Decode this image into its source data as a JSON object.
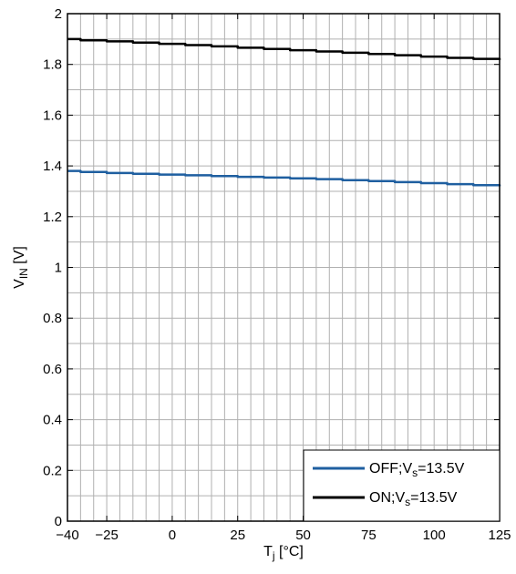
{
  "chart_data": {
    "type": "line",
    "xlabel": {
      "main": "T",
      "sub": "j",
      "unit": " [°C]"
    },
    "ylabel": {
      "main": "V",
      "sub": "IN",
      "unit": " [V]"
    },
    "xlim": [
      -40,
      125
    ],
    "ylim": [
      0,
      2
    ],
    "x_ticks": [
      {
        "value": -40,
        "label": "−40"
      },
      {
        "value": -25,
        "label": "−25"
      },
      {
        "value": 0,
        "label": "0"
      },
      {
        "value": 25,
        "label": "25"
      },
      {
        "value": 50,
        "label": "50"
      },
      {
        "value": 75,
        "label": "75"
      },
      {
        "value": 100,
        "label": "100"
      },
      {
        "value": 125,
        "label": "125"
      }
    ],
    "y_ticks": [
      {
        "value": 0,
        "label": "0"
      },
      {
        "value": 0.2,
        "label": "0.2"
      },
      {
        "value": 0.4,
        "label": "0.4"
      },
      {
        "value": 0.6,
        "label": "0.6"
      },
      {
        "value": 0.8,
        "label": "0.8"
      },
      {
        "value": 1.0,
        "label": "1"
      },
      {
        "value": 1.2,
        "label": "1.2"
      },
      {
        "value": 1.4,
        "label": "1.4"
      },
      {
        "value": 1.6,
        "label": "1.6"
      },
      {
        "value": 1.8,
        "label": "1.8"
      },
      {
        "value": 2.0,
        "label": "2"
      }
    ],
    "grid": true,
    "grid_x_step": 5,
    "grid_y_step": 0.1,
    "legend_position": "bottom-right",
    "series": [
      {
        "name": {
          "main": "OFF;V",
          "sub": "s",
          "tail": "=13.5V"
        },
        "color": "#1f5fa0",
        "x": [
          -40,
          -35,
          -25,
          -15,
          -5,
          5,
          15,
          25,
          35,
          45,
          55,
          65,
          75,
          85,
          95,
          105,
          115,
          125
        ],
        "y": [
          1.38,
          1.376,
          1.372,
          1.369,
          1.366,
          1.363,
          1.36,
          1.357,
          1.354,
          1.351,
          1.348,
          1.344,
          1.34,
          1.336,
          1.332,
          1.328,
          1.324,
          1.32
        ]
      },
      {
        "name": {
          "main": "ON;V",
          "sub": "s",
          "tail": "=13.5V"
        },
        "color": "#000000",
        "x": [
          -40,
          -35,
          -25,
          -15,
          -5,
          5,
          15,
          25,
          35,
          45,
          55,
          65,
          75,
          85,
          95,
          105,
          115,
          125
        ],
        "y": [
          1.9,
          1.895,
          1.891,
          1.886,
          1.881,
          1.876,
          1.871,
          1.866,
          1.861,
          1.856,
          1.851,
          1.846,
          1.841,
          1.836,
          1.831,
          1.826,
          1.822,
          1.818
        ]
      }
    ]
  }
}
